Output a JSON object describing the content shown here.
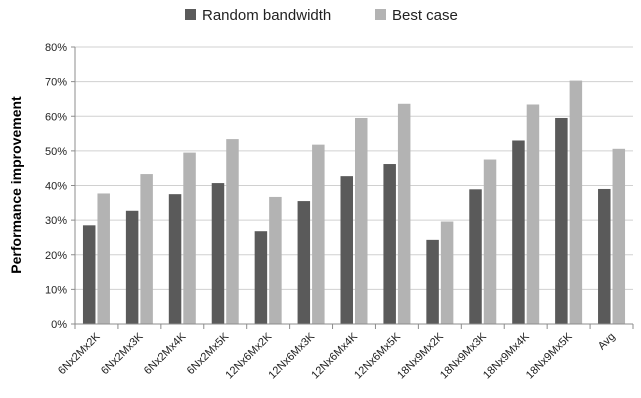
{
  "chart_data": {
    "type": "bar",
    "title": "",
    "xlabel": "",
    "ylabel": "Performance improvement",
    "ylim": [
      0,
      80
    ],
    "y_tick_step": 10,
    "y_tick_suffix": "%",
    "grid": true,
    "legend_position": "top",
    "categories": [
      "6Nx2Mx2K",
      "6Nx2Mx3K",
      "6Nx2Mx4K",
      "6Nx2Mx5K",
      "12Nx6Mx2K",
      "12Nx6Mx3K",
      "12Nx6Mx4K",
      "12Nx6Mx5K",
      "18Nx9Mx2K",
      "18Nx9Mx3K",
      "18Nx9Mx4K",
      "18Nx9Mx5K",
      "Avg"
    ],
    "series": [
      {
        "name": "Random bandwidth",
        "color": "#5a5a5a",
        "values": [
          28.5,
          32.7,
          37.5,
          40.7,
          26.8,
          35.5,
          42.7,
          46.2,
          24.3,
          38.9,
          53.0,
          59.5,
          39.0
        ]
      },
      {
        "name": "Best case",
        "color": "#b3b3b3",
        "values": [
          37.7,
          43.3,
          49.5,
          53.4,
          36.7,
          51.8,
          59.5,
          63.6,
          29.6,
          47.5,
          63.4,
          70.3,
          50.6
        ]
      }
    ]
  }
}
